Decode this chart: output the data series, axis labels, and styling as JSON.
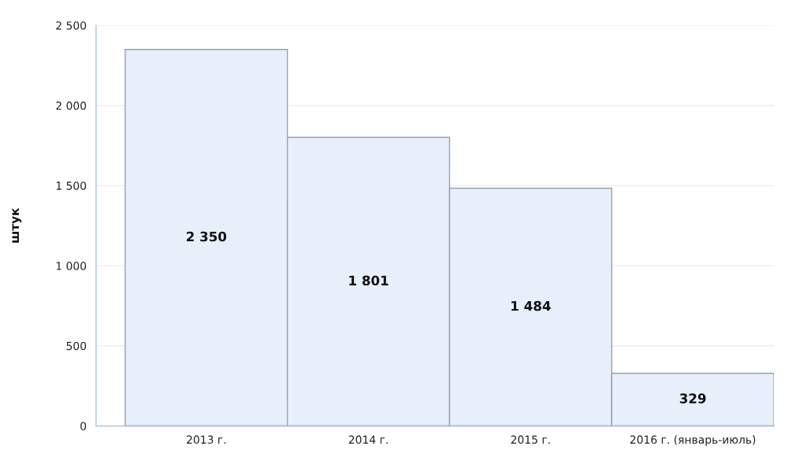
{
  "chart_data": {
    "type": "bar",
    "ylabel": "штук",
    "categories": [
      "2013 г.",
      "2014 г.",
      "2015 г.",
      "2016 г. (январь-июль)"
    ],
    "values": [
      2350,
      1801,
      1484,
      329
    ],
    "value_labels": [
      "2 350",
      "1 801",
      "1 484",
      "329"
    ],
    "color": "#e6effa",
    "ylim": [
      0,
      2500
    ],
    "yticks": [
      0,
      500,
      {
        "value": 1000,
        "label": "1 000"
      },
      {
        "value": 1500,
        "label": "1 500"
      },
      {
        "value": 2000,
        "label": "2 000"
      },
      {
        "value": 2500,
        "label": "2 500"
      }
    ],
    "grid": "y",
    "legend": false
  }
}
